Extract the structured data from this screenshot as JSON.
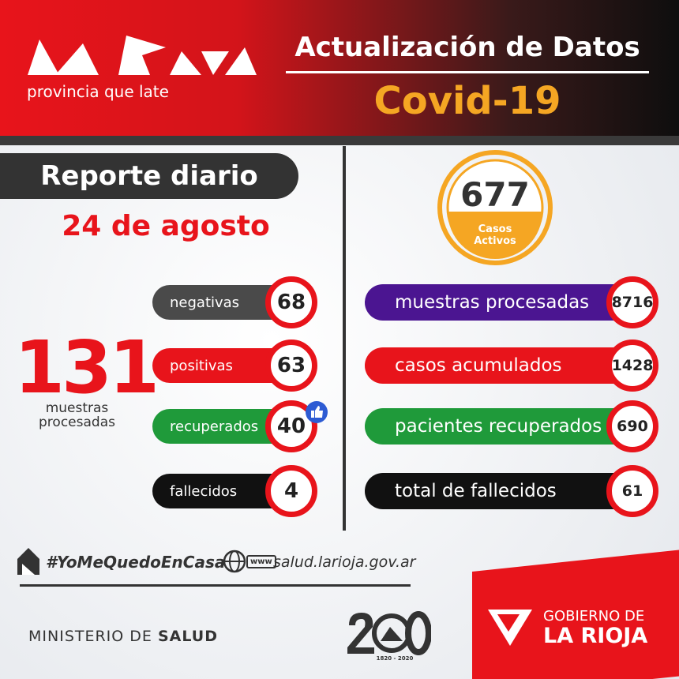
{
  "header": {
    "tagline": "provincia que late",
    "title": "Actualización de Datos",
    "subtitle": "Covid-19"
  },
  "report": {
    "title": "Reporte diario",
    "date": "24 de agosto",
    "total": {
      "value": 131,
      "label": "muestras procesadas"
    },
    "items": [
      {
        "label": "negativas",
        "value": 68
      },
      {
        "label": "positivas",
        "value": 63
      },
      {
        "label": "recuperados",
        "value": 40
      },
      {
        "label": "fallecidos",
        "value": 4
      }
    ]
  },
  "active": {
    "value": 677,
    "label": "Casos Activos"
  },
  "cumulative": [
    {
      "label": "muestras procesadas",
      "value": 8716
    },
    {
      "label": "casos acumulados",
      "value": 1428
    },
    {
      "label": "pacientes recuperados",
      "value": 690
    },
    {
      "label": "total de fallecidos",
      "value": 61
    }
  ],
  "footer": {
    "hashtag": "#YoMeQuedoEnCasa",
    "www": "www",
    "website": "salud.larioja.gov.ar",
    "ministry": "MINISTERIO DE",
    "ministry_bold": "SALUD",
    "anniversary": "1820 - 2020",
    "government": "GOBIERNO DE",
    "province": "LA RIOJA"
  }
}
